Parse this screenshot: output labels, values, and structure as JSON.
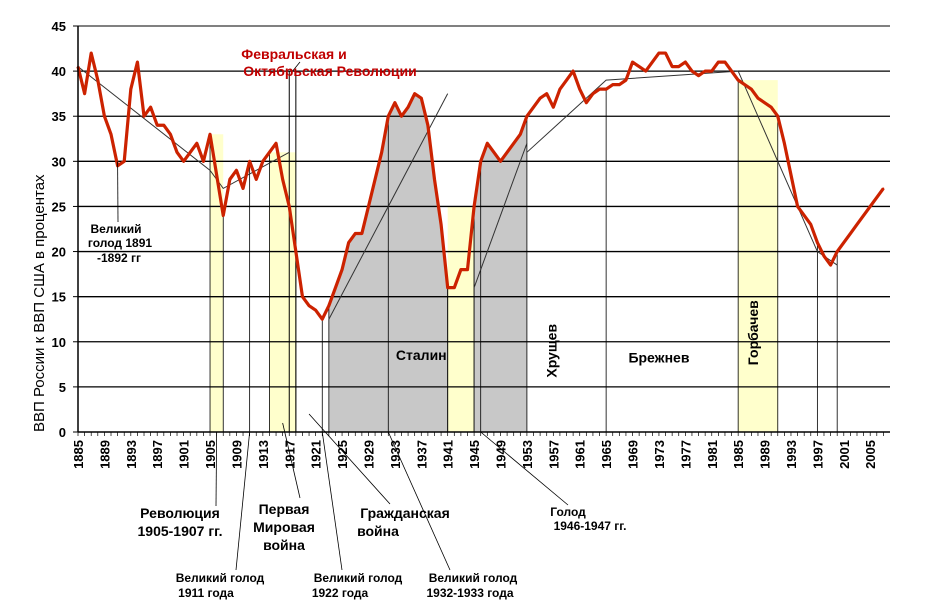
{
  "chart_data": {
    "type": "line",
    "title": "",
    "xlabel": "",
    "ylabel": "ВВП России к ВВП США в процентах",
    "xlim": [
      1885,
      2008
    ],
    "ylim": [
      0,
      45
    ],
    "grid": true,
    "y_ticks": [
      "0",
      "5",
      "10",
      "15",
      "20",
      "25",
      "30",
      "35",
      "40",
      "45"
    ],
    "x_ticks": [
      "1885",
      "1889",
      "1893",
      "1897",
      "1901",
      "1905",
      "1909",
      "1913",
      "1917",
      "1921",
      "1925",
      "1929",
      "1933",
      "1937",
      "1941",
      "1945",
      "1949",
      "1953",
      "1957",
      "1961",
      "1965",
      "1969",
      "1973",
      "1977",
      "1981",
      "1985",
      "1989",
      "1993",
      "1997",
      "2001",
      "2005"
    ],
    "series": [
      {
        "name": "",
        "color": "#cc2200",
        "x": [
          1885,
          1886,
          1887,
          1888,
          1889,
          1890,
          1891,
          1892,
          1893,
          1894,
          1895,
          1896,
          1897,
          1898,
          1899,
          1900,
          1901,
          1902,
          1903,
          1904,
          1905,
          1906,
          1907,
          1908,
          1909,
          1910,
          1911,
          1912,
          1913,
          1914,
          1915,
          1916,
          1917,
          1918,
          1919,
          1920,
          1921,
          1922,
          1923,
          1924,
          1925,
          1926,
          1927,
          1928,
          1929,
          1930,
          1931,
          1932,
          1933,
          1934,
          1935,
          1936,
          1937,
          1938,
          1939,
          1940,
          1941,
          1942,
          1943,
          1944,
          1945,
          1946,
          1947,
          1948,
          1949,
          1950,
          1951,
          1952,
          1953,
          1954,
          1955,
          1956,
          1957,
          1958,
          1959,
          1960,
          1961,
          1962,
          1963,
          1964,
          1965,
          1966,
          1967,
          1968,
          1969,
          1970,
          1971,
          1972,
          1973,
          1974,
          1975,
          1976,
          1977,
          1978,
          1979,
          1980,
          1981,
          1982,
          1983,
          1984,
          1985,
          1986,
          1987,
          1988,
          1989,
          1990,
          1991,
          1992,
          1993,
          1994,
          1995,
          1996,
          1997,
          1998,
          1999,
          2000,
          2001,
          2002,
          2003,
          2004,
          2005,
          2006,
          2007
        ],
        "y": [
          40.5,
          37.5,
          42,
          39,
          35,
          33,
          29.5,
          30,
          38,
          41,
          35,
          36,
          34,
          34,
          33,
          31,
          30,
          31,
          32,
          30,
          33,
          28.5,
          24,
          28,
          29,
          27,
          30,
          28,
          30,
          31,
          32,
          28,
          25,
          20,
          15,
          14,
          13.5,
          12.5,
          14,
          16,
          18,
          21,
          22,
          22,
          25,
          28,
          31,
          35,
          36.5,
          35,
          36,
          37.5,
          37,
          34,
          28,
          23,
          16,
          16,
          18,
          18,
          25,
          30,
          32,
          31,
          30,
          31,
          32,
          33,
          35,
          36,
          37,
          37.5,
          36,
          38,
          39,
          40,
          38,
          36.5,
          37.5,
          38,
          38,
          38.5,
          38.5,
          39,
          41,
          40.5,
          40,
          41,
          42,
          42,
          40.5,
          40.5,
          41,
          40,
          39.5,
          40,
          40,
          41,
          41,
          40,
          39,
          38.5,
          38,
          37,
          36.5,
          36,
          35,
          32,
          28.5,
          25,
          24,
          23,
          21,
          19.5,
          18.5,
          20,
          21,
          22,
          23,
          24,
          25,
          26,
          27
        ]
      }
    ],
    "trend_lines": [
      {
        "x": [
          1885,
          1905,
          1907,
          1917
        ],
        "y": [
          40.5,
          29,
          27,
          31
        ]
      },
      {
        "x": [
          1923,
          1941
        ],
        "y": [
          12.5,
          37.5
        ]
      },
      {
        "x": [
          1945,
          1953
        ],
        "y": [
          16,
          32
        ]
      },
      {
        "x": [
          1953,
          1965,
          1985
        ],
        "y": [
          31,
          39,
          40
        ]
      },
      {
        "x": [
          1985,
          1997,
          2000
        ],
        "y": [
          40,
          20,
          18.5
        ]
      }
    ],
    "shaded_periods": [
      {
        "from": 1905,
        "to": 1907,
        "color": "#ffffcc"
      },
      {
        "from": 1914,
        "to": 1918,
        "color": "#ffffcc"
      },
      {
        "from": 1941,
        "to": 1945,
        "color": "#ffffcc"
      },
      {
        "from": 1985,
        "to": 1991,
        "color": "#ffffcc"
      },
      {
        "from": 1923,
        "to": 1941,
        "color": "#c8c8c8"
      },
      {
        "from": 1945,
        "to": 1953,
        "color": "#c8c8c8"
      }
    ],
    "period_labels": [
      {
        "text": "Сталин",
        "x": 1937,
        "y": 8
      },
      {
        "text": "Хрущев",
        "x": 1957.5,
        "y": 9
      },
      {
        "text": "Брежнев",
        "x": 1973,
        "y": 7.7
      },
      {
        "text": "Горбачев",
        "x": 1988,
        "y": 11
      }
    ],
    "annotations": {
      "revolution_title": [
        "Февральская и",
        "Октябрьская Революции"
      ],
      "famine_1891": [
        "Великий",
        "голод 1891",
        "-1892 гг"
      ],
      "revolution_1905": [
        "Революция",
        "1905-1907 гг."
      ],
      "ww1": [
        "Первая",
        "Мировая",
        "война"
      ],
      "civil_war": [
        "Гражданская",
        "война"
      ],
      "famine_1946": [
        "Голод",
        "1946-1947 гг."
      ],
      "famine_1911": [
        "Великий голод",
        "1911 года"
      ],
      "famine_1922": [
        "Великий голод",
        "1922 года"
      ],
      "famine_1932": [
        "Великий голод",
        "1932-1933 года"
      ]
    }
  }
}
